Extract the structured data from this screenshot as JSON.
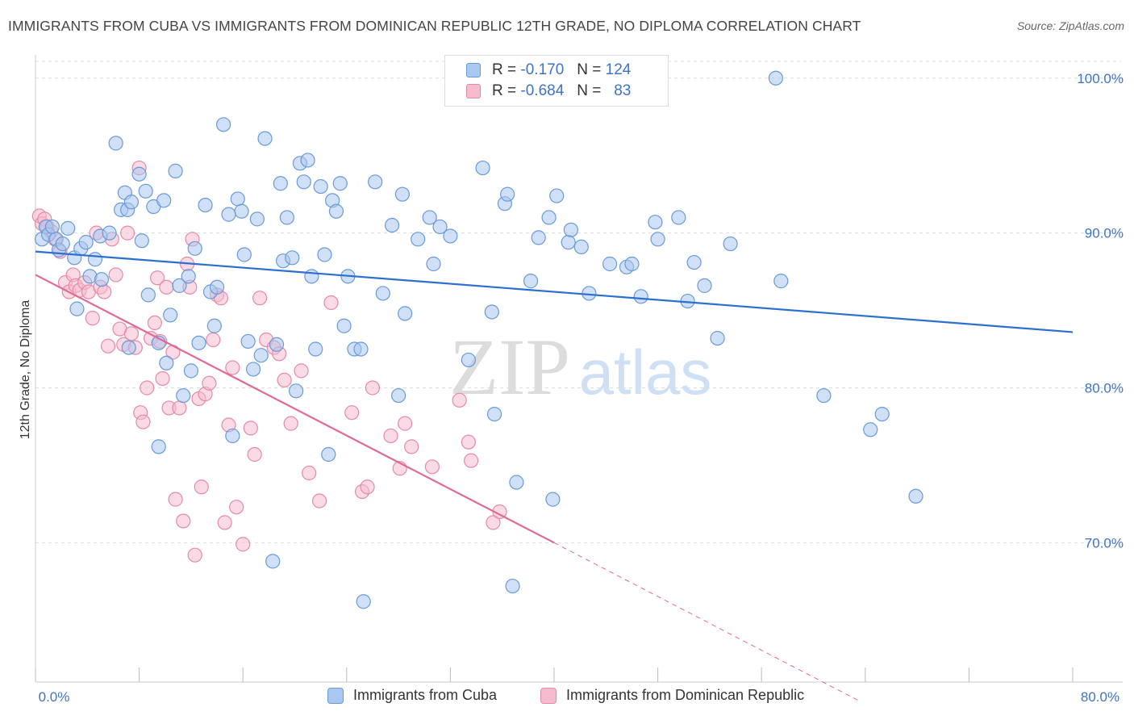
{
  "title": "IMMIGRANTS FROM CUBA VS IMMIGRANTS FROM DOMINICAN REPUBLIC 12TH GRADE, NO DIPLOMA CORRELATION CHART",
  "source": "Source: ZipAtlas.com",
  "watermark": {
    "zip": "ZIP",
    "atlas": "atlas"
  },
  "legend": {
    "rows": [
      {
        "r_label": "R =",
        "r_value": "-0.170",
        "n_label": "N =",
        "n_value": "124"
      },
      {
        "r_label": "R =",
        "r_value": "-0.684",
        "n_label": "N =",
        "n_value": "83"
      }
    ]
  },
  "colors": {
    "cuba_fill": "#a9c7ef",
    "cuba_stroke": "#6a9ad8",
    "cuba_line": "#2b6fd0",
    "dom_fill": "#f5bccd",
    "dom_stroke": "#e58aa8",
    "dom_line": "#e06a96",
    "grid": "#dddddd",
    "axis_text": "#3f73c2"
  },
  "chart_data": {
    "type": "scatter",
    "title": "IMMIGRANTS FROM CUBA VS IMMIGRANTS FROM DOMINICAN REPUBLIC 12TH GRADE, NO DIPLOMA CORRELATION CHART",
    "xlabel": "",
    "ylabel": "12th Grade, No Diploma",
    "xlim": [
      0,
      80
    ],
    "ylim": [
      61.0,
      101.5
    ],
    "x_tick_labels": [
      "0.0%",
      "80.0%"
    ],
    "y_ticks": [
      70,
      80,
      90,
      100
    ],
    "y_tick_labels": [
      "70.0%",
      "80.0%",
      "90.0%",
      "100.0%"
    ],
    "grid": true,
    "legend_position": "top-center",
    "series": [
      {
        "name": "Immigrants from Cuba",
        "r": -0.17,
        "n": 124,
        "trend": {
          "x": [
            0,
            80
          ],
          "y": [
            88.8,
            83.6
          ]
        },
        "points": [
          [
            0.5,
            89.6
          ],
          [
            0.8,
            90.4
          ],
          [
            1.0,
            89.9
          ],
          [
            1.3,
            90.4
          ],
          [
            1.6,
            89.6
          ],
          [
            1.8,
            88.9
          ],
          [
            2.1,
            89.3
          ],
          [
            2.5,
            90.3
          ],
          [
            3.0,
            88.4
          ],
          [
            3.2,
            85.1
          ],
          [
            3.5,
            89.0
          ],
          [
            3.9,
            89.4
          ],
          [
            4.2,
            87.2
          ],
          [
            4.6,
            88.3
          ],
          [
            5.1,
            87.0
          ],
          [
            5.0,
            89.8
          ],
          [
            5.7,
            90.0
          ],
          [
            6.2,
            95.8
          ],
          [
            6.6,
            91.5
          ],
          [
            6.9,
            92.6
          ],
          [
            7.1,
            91.5
          ],
          [
            7.4,
            92.0
          ],
          [
            7.2,
            82.6
          ],
          [
            8.0,
            93.8
          ],
          [
            8.2,
            89.5
          ],
          [
            8.5,
            92.7
          ],
          [
            8.7,
            86.0
          ],
          [
            9.1,
            91.7
          ],
          [
            9.5,
            76.2
          ],
          [
            9.9,
            92.1
          ],
          [
            10.1,
            81.6
          ],
          [
            10.4,
            84.7
          ],
          [
            10.8,
            94.0
          ],
          [
            11.1,
            86.6
          ],
          [
            11.4,
            79.5
          ],
          [
            11.8,
            87.2
          ],
          [
            12.0,
            81.1
          ],
          [
            12.3,
            89.0
          ],
          [
            12.6,
            82.9
          ],
          [
            13.1,
            91.8
          ],
          [
            13.5,
            86.2
          ],
          [
            13.8,
            84.0
          ],
          [
            14.0,
            86.5
          ],
          [
            14.5,
            97.0
          ],
          [
            14.9,
            91.2
          ],
          [
            15.2,
            76.9
          ],
          [
            15.6,
            92.2
          ],
          [
            15.9,
            91.4
          ],
          [
            16.1,
            88.6
          ],
          [
            16.4,
            83.0
          ],
          [
            16.8,
            81.2
          ],
          [
            17.1,
            90.9
          ],
          [
            17.4,
            82.1
          ],
          [
            17.7,
            96.1
          ],
          [
            18.3,
            68.8
          ],
          [
            18.6,
            82.8
          ],
          [
            18.9,
            93.2
          ],
          [
            19.1,
            88.2
          ],
          [
            19.4,
            91.0
          ],
          [
            19.8,
            88.4
          ],
          [
            20.1,
            79.8
          ],
          [
            20.4,
            94.5
          ],
          [
            20.7,
            93.3
          ],
          [
            21.0,
            94.7
          ],
          [
            21.3,
            87.2
          ],
          [
            21.6,
            82.5
          ],
          [
            22.0,
            93.0
          ],
          [
            22.3,
            88.6
          ],
          [
            22.6,
            75.7
          ],
          [
            22.9,
            92.1
          ],
          [
            23.2,
            91.4
          ],
          [
            23.5,
            93.2
          ],
          [
            23.8,
            84.0
          ],
          [
            24.1,
            87.2
          ],
          [
            24.6,
            82.5
          ],
          [
            25.3,
            66.2
          ],
          [
            26.2,
            93.3
          ],
          [
            26.8,
            86.1
          ],
          [
            27.5,
            90.5
          ],
          [
            28.3,
            92.5
          ],
          [
            28.5,
            84.8
          ],
          [
            29.5,
            89.6
          ],
          [
            30.4,
            91.0
          ],
          [
            30.7,
            88.0
          ],
          [
            31.2,
            90.4
          ],
          [
            32.0,
            89.8
          ],
          [
            34.5,
            94.2
          ],
          [
            35.2,
            84.9
          ],
          [
            35.4,
            78.3
          ],
          [
            36.2,
            91.9
          ],
          [
            36.4,
            92.5
          ],
          [
            36.8,
            67.2
          ],
          [
            37.1,
            73.9
          ],
          [
            38.2,
            86.9
          ],
          [
            38.8,
            89.7
          ],
          [
            39.6,
            91.0
          ],
          [
            39.9,
            72.8
          ],
          [
            40.2,
            92.4
          ],
          [
            41.1,
            89.4
          ],
          [
            41.3,
            90.2
          ],
          [
            42.1,
            89.1
          ],
          [
            42.7,
            86.1
          ],
          [
            44.3,
            88.0
          ],
          [
            45.6,
            87.8
          ],
          [
            46.0,
            88.0
          ],
          [
            46.7,
            85.9
          ],
          [
            47.8,
            90.7
          ],
          [
            48.0,
            89.6
          ],
          [
            49.6,
            91.0
          ],
          [
            50.3,
            85.6
          ],
          [
            50.8,
            88.1
          ],
          [
            51.6,
            86.6
          ],
          [
            52.6,
            83.2
          ],
          [
            53.6,
            89.3
          ],
          [
            57.1,
            100.0
          ],
          [
            57.5,
            86.9
          ],
          [
            60.8,
            79.5
          ],
          [
            64.4,
            77.3
          ],
          [
            65.3,
            78.3
          ],
          [
            67.9,
            73.0
          ],
          [
            25.1,
            82.5
          ],
          [
            28.0,
            79.5
          ],
          [
            33.4,
            81.8
          ],
          [
            9.5,
            82.9
          ]
        ]
      },
      {
        "name": "Immigrants from Dominican Republic",
        "r": -0.684,
        "n": 83,
        "trend": {
          "x": [
            0,
            40
          ],
          "y": [
            87.3,
            70.0
          ]
        },
        "trend_extension": {
          "x": [
            40,
            63.5
          ],
          "y": [
            70.0,
            59.8
          ]
        },
        "points": [
          [
            0.3,
            91.1
          ],
          [
            0.5,
            90.6
          ],
          [
            0.7,
            90.9
          ],
          [
            0.9,
            90.4
          ],
          [
            1.2,
            90.1
          ],
          [
            1.5,
            89.6
          ],
          [
            1.9,
            88.8
          ],
          [
            2.3,
            86.8
          ],
          [
            2.6,
            86.2
          ],
          [
            2.9,
            87.3
          ],
          [
            3.1,
            86.6
          ],
          [
            3.4,
            86.3
          ],
          [
            3.8,
            86.8
          ],
          [
            4.1,
            86.2
          ],
          [
            4.4,
            84.5
          ],
          [
            4.7,
            90.0
          ],
          [
            5.0,
            86.5
          ],
          [
            5.3,
            86.2
          ],
          [
            5.6,
            82.7
          ],
          [
            5.9,
            89.6
          ],
          [
            6.2,
            87.3
          ],
          [
            6.5,
            83.8
          ],
          [
            6.8,
            82.8
          ],
          [
            7.1,
            90.0
          ],
          [
            7.4,
            83.5
          ],
          [
            7.7,
            82.6
          ],
          [
            8.0,
            94.2
          ],
          [
            8.1,
            78.4
          ],
          [
            8.3,
            77.8
          ],
          [
            8.6,
            80.0
          ],
          [
            8.9,
            83.2
          ],
          [
            9.2,
            84.2
          ],
          [
            9.4,
            87.1
          ],
          [
            9.6,
            83.0
          ],
          [
            9.8,
            80.6
          ],
          [
            10.1,
            86.5
          ],
          [
            10.3,
            78.7
          ],
          [
            10.6,
            82.3
          ],
          [
            10.8,
            72.8
          ],
          [
            11.1,
            78.7
          ],
          [
            11.4,
            71.4
          ],
          [
            11.7,
            88.0
          ],
          [
            11.9,
            86.5
          ],
          [
            12.1,
            89.6
          ],
          [
            12.3,
            69.2
          ],
          [
            12.6,
            79.3
          ],
          [
            12.8,
            73.6
          ],
          [
            13.1,
            79.6
          ],
          [
            13.4,
            80.3
          ],
          [
            13.7,
            83.1
          ],
          [
            14.0,
            86.0
          ],
          [
            14.3,
            85.8
          ],
          [
            14.6,
            71.3
          ],
          [
            14.9,
            77.6
          ],
          [
            15.2,
            81.3
          ],
          [
            15.5,
            72.3
          ],
          [
            16.0,
            69.9
          ],
          [
            16.6,
            77.4
          ],
          [
            16.9,
            75.7
          ],
          [
            17.3,
            85.8
          ],
          [
            17.8,
            83.1
          ],
          [
            18.4,
            82.6
          ],
          [
            18.8,
            82.2
          ],
          [
            19.2,
            80.5
          ],
          [
            19.7,
            77.7
          ],
          [
            20.5,
            81.1
          ],
          [
            21.1,
            74.5
          ],
          [
            21.9,
            72.7
          ],
          [
            22.8,
            85.5
          ],
          [
            24.4,
            78.4
          ],
          [
            25.2,
            73.3
          ],
          [
            25.6,
            73.6
          ],
          [
            26.0,
            80.0
          ],
          [
            27.4,
            76.9
          ],
          [
            28.1,
            74.8
          ],
          [
            28.5,
            77.7
          ],
          [
            29.0,
            76.2
          ],
          [
            30.6,
            74.9
          ],
          [
            32.7,
            79.2
          ],
          [
            33.4,
            76.5
          ],
          [
            33.6,
            75.3
          ],
          [
            35.3,
            71.3
          ],
          [
            35.8,
            72.0
          ]
        ]
      }
    ]
  },
  "bottom_legend": [
    {
      "label": "Immigrants from Cuba"
    },
    {
      "label": "Immigrants from Dominican Republic"
    }
  ]
}
